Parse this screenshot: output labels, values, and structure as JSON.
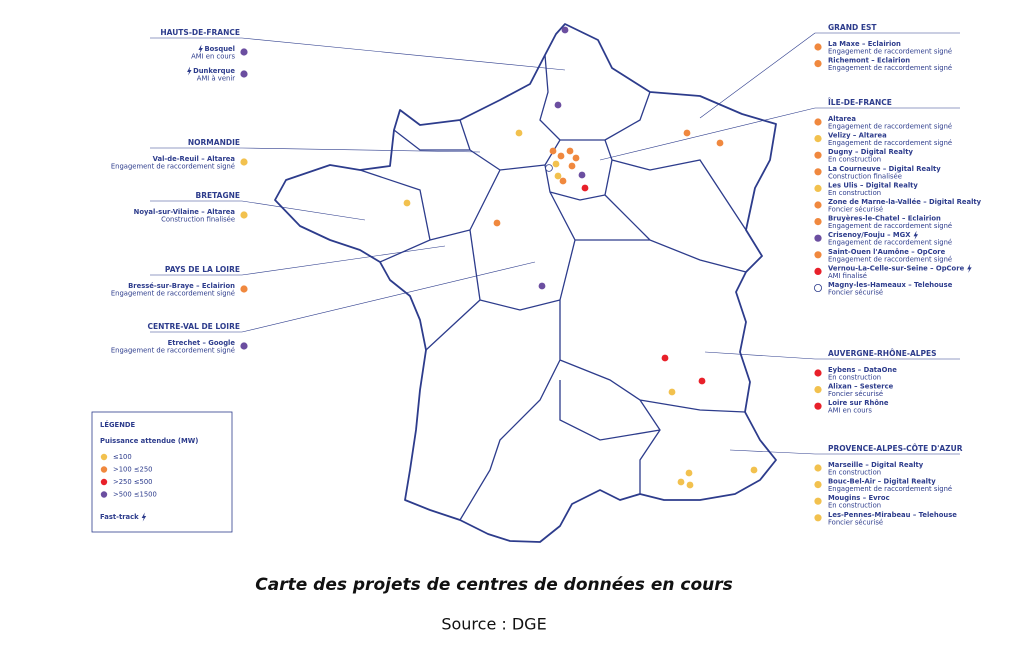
{
  "regions": [
    {
      "name": "HAUTS-DE-FRANCE",
      "projects": [
        {
          "name": "Bosquel",
          "status": "AMI en cours",
          "color": "#6b4ea0",
          "fast_track": true
        },
        {
          "name": "Dunkerque",
          "status": "AMI à venir",
          "color": "#6b4ea0",
          "fast_track": true
        }
      ]
    },
    {
      "name": "NORMANDIE",
      "projects": [
        {
          "name": "Val-de-Reuil – Altarea",
          "status": "Engagement de raccordement signé",
          "color": "#f2c14e"
        }
      ]
    },
    {
      "name": "BRETAGNE",
      "projects": [
        {
          "name": "Noyal-sur-Vilaine – Altarea",
          "status": "Construction finalisée",
          "color": "#f2c14e"
        }
      ]
    },
    {
      "name": "PAYS DE LA LOIRE",
      "projects": [
        {
          "name": "Bressé-sur-Braye – Eclairion",
          "status": "Engagement de raccordement signé",
          "color": "#f0883e"
        }
      ]
    },
    {
      "name": "CENTRE-VAL DE LOIRE",
      "projects": [
        {
          "name": "Etrechet – Google",
          "status": "Engagement de raccordement signé",
          "color": "#6b4ea0"
        }
      ]
    },
    {
      "name": "GRAND EST",
      "projects": [
        {
          "name": "La Maxe – Eclairion",
          "status": "Engagement de raccordement signé",
          "color": "#f0883e"
        },
        {
          "name": "Richemont – Eclairion",
          "status": "Engagement de raccordement signé",
          "color": "#f0883e"
        }
      ]
    },
    {
      "name": "ÎLE-DE-FRANCE",
      "projects": [
        {
          "name": "Altarea",
          "status": "Engagement de raccordement signé",
          "color": "#f0883e"
        },
        {
          "name": "Velizy – Altarea",
          "status": "Engagement de raccordement signé",
          "color": "#f2c14e"
        },
        {
          "name": "Dugny – Digital Realty",
          "status": "En construction",
          "color": "#f0883e"
        },
        {
          "name": "La Courneuve – Digital Realty",
          "status": "Construction finalisée",
          "color": "#f0883e"
        },
        {
          "name": "Les Ulis – Digital Realty",
          "status": "En construction",
          "color": "#f2c14e"
        },
        {
          "name": "Zone de Marne-la-Vallée – Digital Realty",
          "status": "Foncier sécurisé",
          "color": "#f0883e"
        },
        {
          "name": "Bruyères-le-Chatel – Eclairion",
          "status": "Engagement de raccordement signé",
          "color": "#f0883e"
        },
        {
          "name": "Crisenoy/Fouju – MGX",
          "status": "Engagement de raccordement signé",
          "color": "#6b4ea0",
          "fast_track": true
        },
        {
          "name": "Saint-Ouen l'Aumône – OpCore",
          "status": "Engagement de raccordement signé",
          "color": "#f0883e"
        },
        {
          "name": "Vernou-La-Celle-sur-Seine – OpCore",
          "status": "AMI finalisé",
          "color": "#e8202a",
          "fast_track": true
        },
        {
          "name": "Magny-les-Hameaux – Telehouse",
          "status": "Foncier sécurisé",
          "color": "#ffffff"
        }
      ]
    },
    {
      "name": "AUVERGNE-RHÔNE-ALPES",
      "projects": [
        {
          "name": "Eybens – DataOne",
          "status": "En construction",
          "color": "#e8202a"
        },
        {
          "name": "Alixan – Sesterce",
          "status": "Foncier sécurisé",
          "color": "#f2c14e"
        },
        {
          "name": "Loire sur Rhône",
          "status": "AMI en cours",
          "color": "#e8202a"
        }
      ]
    },
    {
      "name": "PROVENCE-ALPES-CÔTE D'AZUR",
      "projects": [
        {
          "name": "Marseille – Digital Realty",
          "status": "En construction",
          "color": "#f2c14e"
        },
        {
          "name": "Bouc-Bel-Air – Digital Realty",
          "status": "Engagement de raccordement signé",
          "color": "#f2c14e"
        },
        {
          "name": "Mougins – Evroc",
          "status": "En construction",
          "color": "#f2c14e"
        },
        {
          "name": "Les-Pennes-Mirabeau – Telehouse",
          "status": "Foncier sécurisé",
          "color": "#f2c14e"
        }
      ]
    }
  ],
  "legend": {
    "title": "LÉGENDE",
    "subtitle": "Puissance attendue (MW)",
    "items": [
      {
        "label": "≤100",
        "color": "#f2c14e"
      },
      {
        "label": ">100 ≤250",
        "color": "#f0883e"
      },
      {
        "label": ">250 ≤500",
        "color": "#e8202a"
      },
      {
        "label": ">500 ≤1500",
        "color": "#6b4ea0"
      }
    ],
    "fast_track_label": "Fast-track"
  },
  "caption": "Carte des projets de centres de données en cours",
  "source": "Source : DGE"
}
